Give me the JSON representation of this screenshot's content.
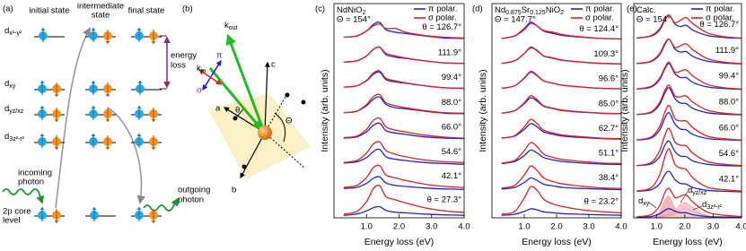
{
  "panel_labels": [
    "(a)",
    "(b)",
    "(c)",
    "(d)",
    "(e)"
  ],
  "panel_a": {
    "columns": [
      [
        "initial state"
      ],
      [
        "intermediate",
        "state"
      ],
      [
        "final state"
      ]
    ],
    "orbitals": [
      {
        "base": "d",
        "sub": "x²-y²"
      },
      {
        "base": "d",
        "sub": "xy"
      },
      {
        "base": "d",
        "sub": "yz/xz"
      },
      {
        "base": "d",
        "sub": "3z²-r²"
      }
    ],
    "energy_loss": [
      "energy",
      "loss"
    ],
    "incoming": [
      "incoming",
      "photon"
    ],
    "outgoing": [
      "outgoing",
      "photon"
    ],
    "core": [
      "2p core",
      "level"
    ]
  },
  "panel_b": {
    "axes": [
      "a",
      "b",
      "c"
    ],
    "k_in": {
      "base": "k",
      "sub": "in"
    },
    "k_out": {
      "base": "k",
      "sub": "out"
    },
    "pi": "π",
    "sigma": "σ",
    "theta": "θ",
    "Theta": "Θ"
  },
  "chart_data": [
    {
      "type": "line",
      "title": [
        {
          "t": "NdNiO"
        },
        {
          "t": "2",
          "sub": true
        }
      ],
      "subtitle": "Θ = 154°",
      "xlabel": "Energy loss (eV)",
      "ylabel": "Intensity (arb. units)",
      "legend": [
        {
          "name": "π polar.",
          "color": "#2222dd"
        },
        {
          "name": "σ polar.",
          "color": "#dd2222"
        }
      ],
      "x": [
        0.3,
        0.7,
        1.0,
        1.2,
        1.4,
        1.6,
        1.9,
        2.2,
        2.8,
        3.4,
        4.0
      ],
      "xlim": [
        0,
        4
      ],
      "xticks": [
        {
          "value": 1,
          "label": "1.0"
        },
        {
          "value": 2,
          "label": "2.0"
        },
        {
          "value": 3,
          "label": "3.0"
        },
        {
          "value": 4,
          "label": "4.0"
        }
      ],
      "ylim": [
        0,
        8.6
      ],
      "spectra": [
        {
          "label": "θ = 126.7°",
          "pi": [
            7.25,
            7.3,
            7.5,
            7.75,
            7.85,
            7.55,
            7.45,
            7.4,
            7.3,
            7.22,
            7.2
          ],
          "sigma": [
            7.25,
            7.3,
            7.5,
            7.7,
            7.78,
            7.6,
            7.6,
            7.45,
            7.32,
            7.25,
            7.22
          ]
        },
        {
          "label": "111.9°",
          "pi": [
            6.25,
            6.3,
            6.5,
            6.75,
            6.85,
            6.55,
            6.45,
            6.4,
            6.3,
            6.22,
            6.2
          ],
          "sigma": [
            6.25,
            6.3,
            6.5,
            6.75,
            6.85,
            6.6,
            6.5,
            6.42,
            6.3,
            6.22,
            6.2
          ]
        },
        {
          "label": "99.4°",
          "pi": [
            5.25,
            5.3,
            5.5,
            5.75,
            5.85,
            5.55,
            5.45,
            5.4,
            5.3,
            5.22,
            5.2
          ],
          "sigma": [
            5.25,
            5.3,
            5.52,
            5.8,
            5.9,
            5.6,
            5.5,
            5.42,
            5.3,
            5.22,
            5.2
          ]
        },
        {
          "label": "88.0°",
          "pi": [
            4.22,
            4.28,
            4.5,
            4.75,
            4.85,
            4.55,
            4.42,
            4.38,
            4.28,
            4.2,
            4.18
          ],
          "sigma": [
            4.22,
            4.28,
            4.55,
            4.85,
            4.95,
            4.62,
            4.5,
            4.42,
            4.3,
            4.22,
            4.2
          ]
        },
        {
          "label": "66.0°",
          "pi": [
            3.2,
            3.25,
            3.45,
            3.7,
            3.8,
            3.5,
            3.4,
            3.35,
            3.25,
            3.2,
            3.18
          ],
          "sigma": [
            3.22,
            3.28,
            3.55,
            3.9,
            4.0,
            3.65,
            3.52,
            3.45,
            3.32,
            3.24,
            3.2
          ]
        },
        {
          "label": "54.6°",
          "pi": [
            2.2,
            2.25,
            2.42,
            2.65,
            2.75,
            2.45,
            2.35,
            2.3,
            2.22,
            2.18,
            2.15
          ],
          "sigma": [
            2.22,
            2.3,
            2.6,
            2.95,
            3.05,
            2.7,
            2.55,
            2.45,
            2.32,
            2.25,
            2.22
          ]
        },
        {
          "label": "42.1°",
          "pi": [
            1.18,
            1.22,
            1.38,
            1.58,
            1.65,
            1.4,
            1.3,
            1.26,
            1.2,
            1.16,
            1.14
          ],
          "sigma": [
            1.22,
            1.3,
            1.62,
            2.0,
            2.1,
            1.72,
            1.6,
            1.5,
            1.35,
            1.26,
            1.22
          ]
        },
        {
          "label": "θ = 27.3°",
          "pi": [
            0.1,
            0.15,
            0.28,
            0.4,
            0.45,
            0.3,
            0.22,
            0.2,
            0.15,
            0.12,
            0.1
          ],
          "sigma": [
            0.15,
            0.25,
            0.65,
            1.15,
            1.3,
            0.85,
            0.72,
            0.6,
            0.4,
            0.28,
            0.22
          ]
        }
      ]
    },
    {
      "type": "line",
      "title": [
        {
          "t": "Nd"
        },
        {
          "t": "0.875",
          "sub": true
        },
        {
          "t": "Sr"
        },
        {
          "t": "0.125",
          "sub": true
        },
        {
          "t": "NiO"
        },
        {
          "t": "2",
          "sub": true
        }
      ],
      "subtitle": "Θ = 147.7°",
      "xlabel": "Energy loss (eV)",
      "ylabel": "Intensity (arb. units)",
      "legend": [
        {
          "name": "π polar.",
          "color": "#2222dd"
        },
        {
          "name": "σ polar.",
          "color": "#dd2222"
        }
      ],
      "x": [
        0.3,
        0.7,
        1.0,
        1.2,
        1.4,
        1.6,
        1.9,
        2.2,
        2.8,
        3.4,
        4.0
      ],
      "xlim": [
        0,
        4
      ],
      "xticks": [
        {
          "value": 1,
          "label": "1.0"
        },
        {
          "value": 2,
          "label": "2.0"
        },
        {
          "value": 3,
          "label": "3.0"
        },
        {
          "value": 4,
          "label": "4.0"
        }
      ],
      "ylim": [
        0,
        8.6
      ],
      "spectra": [
        {
          "label": "θ = 124.4°",
          "pi": [
            7.2,
            7.3,
            7.6,
            7.85,
            7.7,
            7.5,
            7.4,
            7.32,
            7.25,
            7.2,
            7.18
          ],
          "sigma": [
            7.2,
            7.3,
            7.55,
            7.8,
            7.7,
            7.52,
            7.45,
            7.35,
            7.26,
            7.2,
            7.18
          ]
        },
        {
          "label": "109.3°",
          "pi": [
            6.2,
            6.3,
            6.6,
            6.85,
            6.7,
            6.5,
            6.4,
            6.32,
            6.25,
            6.2,
            6.18
          ],
          "sigma": [
            6.2,
            6.3,
            6.6,
            6.82,
            6.72,
            6.5,
            6.42,
            6.33,
            6.25,
            6.2,
            6.18
          ]
        },
        {
          "label": "96.6°",
          "pi": [
            5.2,
            5.3,
            5.6,
            5.85,
            5.7,
            5.5,
            5.4,
            5.32,
            5.25,
            5.2,
            5.18
          ],
          "sigma": [
            5.2,
            5.3,
            5.62,
            5.88,
            5.72,
            5.5,
            5.4,
            5.32,
            5.25,
            5.2,
            5.18
          ]
        },
        {
          "label": "85.0°",
          "pi": [
            4.2,
            4.3,
            4.58,
            4.82,
            4.68,
            4.48,
            4.38,
            4.3,
            4.24,
            4.2,
            4.18
          ],
          "sigma": [
            4.2,
            4.3,
            4.62,
            4.9,
            4.74,
            4.5,
            4.4,
            4.32,
            4.25,
            4.2,
            4.18
          ]
        },
        {
          "label": "62.7°",
          "pi": [
            3.2,
            3.28,
            3.55,
            3.78,
            3.65,
            3.45,
            3.35,
            3.28,
            3.22,
            3.18,
            3.16
          ],
          "sigma": [
            3.2,
            3.3,
            3.65,
            3.95,
            3.78,
            3.52,
            3.4,
            3.32,
            3.25,
            3.2,
            3.18
          ]
        },
        {
          "label": "51.1°",
          "pi": [
            2.18,
            2.26,
            2.5,
            2.72,
            2.6,
            2.42,
            2.32,
            2.26,
            2.2,
            2.16,
            2.14
          ],
          "sigma": [
            2.2,
            2.3,
            2.7,
            3.02,
            2.85,
            2.56,
            2.42,
            2.34,
            2.26,
            2.2,
            2.18
          ]
        },
        {
          "label": "38.4°",
          "pi": [
            1.16,
            1.22,
            1.42,
            1.6,
            1.5,
            1.35,
            1.28,
            1.22,
            1.18,
            1.15,
            1.13
          ],
          "sigma": [
            1.2,
            1.3,
            1.72,
            2.08,
            1.9,
            1.6,
            1.45,
            1.36,
            1.27,
            1.2,
            1.18
          ]
        },
        {
          "label": "θ = 23.2°",
          "pi": [
            0.1,
            0.14,
            0.26,
            0.36,
            0.32,
            0.24,
            0.2,
            0.17,
            0.14,
            0.12,
            0.1
          ],
          "sigma": [
            0.15,
            0.25,
            0.8,
            1.25,
            1.1,
            0.75,
            0.55,
            0.45,
            0.32,
            0.25,
            0.2
          ]
        }
      ]
    },
    {
      "type": "line",
      "title": [
        {
          "t": "Calc."
        }
      ],
      "subtitle": "Θ = 154°",
      "xlabel": "Energy loss (eV)",
      "ylabel": "Intensity (arb. units)",
      "legend": [
        {
          "name": "π polar.",
          "color": "#2222dd"
        },
        {
          "name": "σ polar.",
          "color": "#dd2222"
        }
      ],
      "x": [
        0.3,
        0.8,
        1.1,
        1.3,
        1.45,
        1.65,
        1.85,
        2.05,
        2.3,
        2.8,
        3.4,
        4.0
      ],
      "xlim": [
        0.2,
        4.0
      ],
      "xticks": [
        {
          "value": 1,
          "label": "1.0"
        },
        {
          "value": 2,
          "label": "2.0"
        },
        {
          "value": 3,
          "label": "3.0"
        },
        {
          "value": 4,
          "label": "4.0"
        }
      ],
      "ylim": [
        0,
        8.4
      ],
      "spectra": [
        {
          "label": "θ = 126.7°",
          "pi": [
            7.05,
            7.12,
            7.35,
            7.75,
            7.95,
            7.6,
            7.5,
            7.55,
            7.35,
            7.15,
            7.07,
            7.04
          ],
          "sigma": [
            7.05,
            7.14,
            7.4,
            7.8,
            7.95,
            7.65,
            7.75,
            7.85,
            7.6,
            7.25,
            7.1,
            7.05
          ]
        },
        {
          "label": "111.9°",
          "pi": [
            6.05,
            6.12,
            6.38,
            6.8,
            7.0,
            6.62,
            6.5,
            6.52,
            6.32,
            6.14,
            6.07,
            6.04
          ],
          "sigma": [
            6.05,
            6.14,
            6.42,
            6.85,
            7.0,
            6.68,
            6.75,
            6.82,
            6.58,
            6.24,
            6.1,
            6.05
          ]
        },
        {
          "label": "99.4°",
          "pi": [
            5.05,
            5.12,
            5.4,
            5.85,
            6.05,
            5.65,
            5.5,
            5.5,
            5.3,
            5.13,
            5.07,
            5.04
          ],
          "sigma": [
            5.05,
            5.15,
            5.45,
            5.9,
            6.1,
            5.72,
            5.75,
            5.8,
            5.55,
            5.23,
            5.1,
            5.05
          ]
        },
        {
          "label": "88.0°",
          "pi": [
            4.05,
            4.12,
            4.42,
            4.9,
            5.1,
            4.68,
            4.5,
            4.48,
            4.28,
            4.12,
            4.06,
            4.04
          ],
          "sigma": [
            4.05,
            4.15,
            4.5,
            5.0,
            5.2,
            4.78,
            4.75,
            4.78,
            4.52,
            4.22,
            4.1,
            4.05
          ]
        },
        {
          "label": "66.0°",
          "pi": [
            3.05,
            3.12,
            3.42,
            3.92,
            4.12,
            3.68,
            3.48,
            3.45,
            3.26,
            3.11,
            3.06,
            3.04
          ],
          "sigma": [
            3.05,
            3.16,
            3.55,
            4.15,
            4.4,
            3.9,
            3.8,
            3.8,
            3.52,
            3.2,
            3.1,
            3.05
          ]
        },
        {
          "label": "54.6°",
          "pi": [
            2.05,
            2.11,
            2.38,
            2.85,
            3.0,
            2.6,
            2.42,
            2.4,
            2.22,
            2.1,
            2.05,
            2.03
          ],
          "sigma": [
            2.05,
            2.16,
            2.6,
            3.25,
            3.5,
            2.98,
            2.85,
            2.82,
            2.52,
            2.2,
            2.1,
            2.05
          ]
        },
        {
          "label": "42.1°",
          "pi": [
            1.04,
            1.1,
            1.32,
            1.7,
            1.82,
            1.5,
            1.35,
            1.32,
            1.18,
            1.08,
            1.04,
            1.02
          ],
          "sigma": [
            1.05,
            1.17,
            1.65,
            2.4,
            2.7,
            2.1,
            1.95,
            1.9,
            1.55,
            1.2,
            1.1,
            1.05
          ]
        },
        {
          "label": null,
          "pi": [
            0.02,
            0.05,
            0.15,
            0.3,
            0.36,
            0.26,
            0.2,
            0.2,
            0.12,
            0.05,
            0.03,
            0.02
          ],
          "sigma": [
            0.04,
            0.12,
            0.45,
            1.0,
            1.15,
            0.8,
            0.85,
            0.9,
            0.6,
            0.22,
            0.1,
            0.05
          ]
        }
      ],
      "components": [
        {
          "name": {
            "base": "d",
            "sub": "xy"
          },
          "color": "#f2a0a0",
          "values": [
            0,
            0.04,
            0.25,
            0.7,
            0.85,
            0.4,
            0.15,
            0.07,
            0.03,
            0.01,
            0,
            0
          ]
        },
        {
          "name": {
            "base": "d",
            "sub": "yz/xz"
          },
          "color": "#f5b8b8",
          "values": [
            0,
            0.01,
            0.04,
            0.1,
            0.15,
            0.3,
            0.55,
            0.6,
            0.4,
            0.1,
            0.03,
            0.01
          ]
        },
        {
          "name": {
            "base": "d",
            "sub": "3z²-r²"
          },
          "color": "#f8cccc",
          "values": [
            0,
            0,
            0.02,
            0.05,
            0.08,
            0.15,
            0.3,
            0.35,
            0.25,
            0.08,
            0.02,
            0
          ]
        }
      ]
    }
  ]
}
